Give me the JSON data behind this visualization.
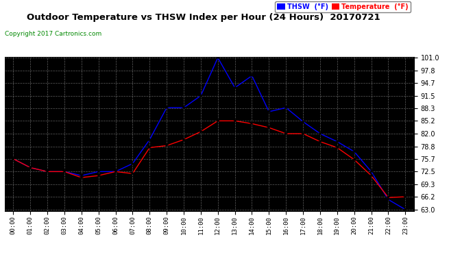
{
  "title": "Outdoor Temperature vs THSW Index per Hour (24 Hours)  20170721",
  "copyright": "Copyright 2017 Cartronics.com",
  "background_color": "#ffffff",
  "plot_bg_color": "#000000",
  "grid_color": "#888888",
  "hours": [
    0,
    1,
    2,
    3,
    4,
    5,
    6,
    7,
    8,
    9,
    10,
    11,
    12,
    13,
    14,
    15,
    16,
    17,
    18,
    19,
    20,
    21,
    22,
    23
  ],
  "hour_labels": [
    "00:00",
    "01:00",
    "02:00",
    "03:00",
    "04:00",
    "05:00",
    "06:00",
    "07:00",
    "08:00",
    "09:00",
    "10:00",
    "11:00",
    "12:00",
    "13:00",
    "14:00",
    "15:00",
    "16:00",
    "17:00",
    "18:00",
    "19:00",
    "20:00",
    "21:00",
    "22:00",
    "23:00"
  ],
  "thsw": [
    75.7,
    73.5,
    72.5,
    72.5,
    71.5,
    72.5,
    72.5,
    74.5,
    80.5,
    88.5,
    88.5,
    91.5,
    101.0,
    93.5,
    96.5,
    87.5,
    88.5,
    85.0,
    82.0,
    80.0,
    77.5,
    72.5,
    65.5,
    63.0
  ],
  "temperature": [
    75.7,
    73.5,
    72.5,
    72.5,
    71.0,
    71.5,
    72.5,
    72.0,
    78.5,
    79.0,
    80.5,
    82.5,
    85.2,
    85.2,
    84.5,
    83.5,
    82.0,
    82.0,
    80.0,
    78.5,
    75.5,
    71.5,
    66.0,
    66.2
  ],
  "thsw_color": "#0000ff",
  "temp_color": "#ff0000",
  "ylim_min": 63.0,
  "ylim_max": 101.0,
  "yticks": [
    63.0,
    66.2,
    69.3,
    72.5,
    75.7,
    78.8,
    82.0,
    85.2,
    88.3,
    91.5,
    94.7,
    97.8,
    101.0
  ],
  "legend_thsw_label": "THSW  (°F)",
  "legend_temp_label": "Temperature  (°F)"
}
